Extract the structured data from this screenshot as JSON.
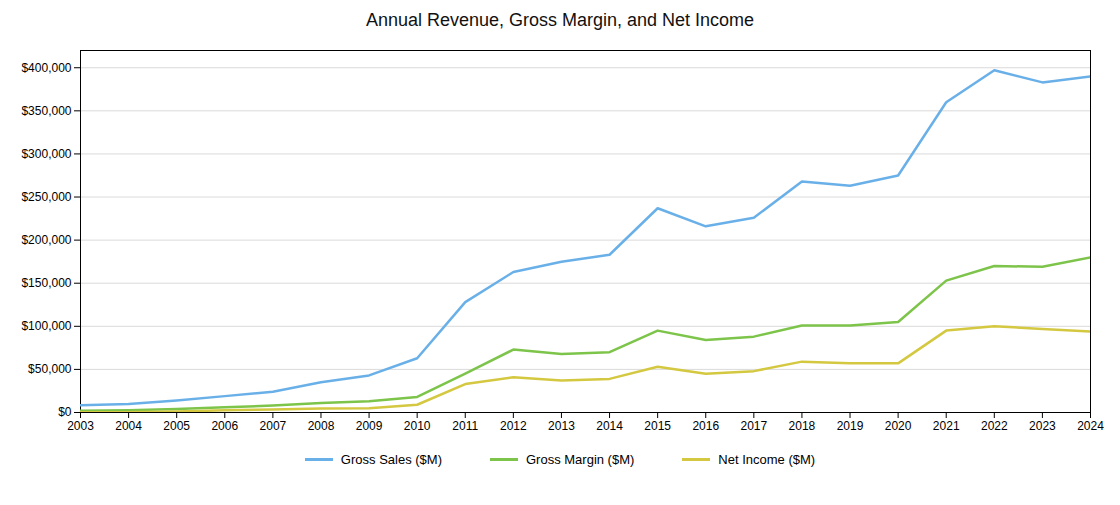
{
  "chart_data": {
    "type": "line",
    "title": "Annual Revenue, Gross Margin, and Net Income",
    "x": [
      2003,
      2004,
      2005,
      2006,
      2007,
      2008,
      2009,
      2010,
      2011,
      2012,
      2013,
      2014,
      2015,
      2016,
      2017,
      2018,
      2019,
      2020,
      2021,
      2022,
      2023,
      2024
    ],
    "series": [
      {
        "name": "Gross Sales ($M)",
        "color": "#6ab0e8",
        "values": [
          8500,
          10000,
          14000,
          19000,
          24000,
          35000,
          43000,
          63000,
          128000,
          163000,
          175000,
          183000,
          237000,
          216000,
          226000,
          268000,
          263000,
          275000,
          360000,
          397000,
          383000,
          390000
        ]
      },
      {
        "name": "Gross Margin ($M)",
        "color": "#7dc44a",
        "values": [
          2000,
          2500,
          4000,
          6000,
          8000,
          11000,
          13000,
          18000,
          45000,
          73000,
          68000,
          70000,
          95000,
          84000,
          88000,
          101000,
          101000,
          105000,
          153000,
          170000,
          169000,
          180000
        ]
      },
      {
        "name": "Net Income ($M)",
        "color": "#d4c840",
        "values": [
          400,
          300,
          1200,
          2500,
          3500,
          4500,
          5000,
          9000,
          33000,
          41000,
          37000,
          39000,
          53000,
          45000,
          48000,
          59000,
          57000,
          57000,
          95000,
          100000,
          97000,
          94000
        ]
      }
    ],
    "xlim": [
      2003,
      2024
    ],
    "xticks": [
      2003,
      2004,
      2005,
      2006,
      2007,
      2008,
      2009,
      2010,
      2011,
      2012,
      2013,
      2014,
      2015,
      2016,
      2017,
      2018,
      2019,
      2020,
      2021,
      2022,
      2023,
      2024
    ],
    "ylim": [
      0,
      420000
    ],
    "yticks": [
      {
        "value": 0,
        "label": "$0"
      },
      {
        "value": 50000,
        "label": "$50,000"
      },
      {
        "value": 100000,
        "label": "$100,000"
      },
      {
        "value": 150000,
        "label": "$150,000"
      },
      {
        "value": 200000,
        "label": "$200,000"
      },
      {
        "value": 250000,
        "label": "$250,000"
      },
      {
        "value": 300000,
        "label": "$300,000"
      },
      {
        "value": 350000,
        "label": "$350,000"
      },
      {
        "value": 400000,
        "label": "$400,000"
      }
    ],
    "grid": true,
    "legend": "bottom"
  }
}
